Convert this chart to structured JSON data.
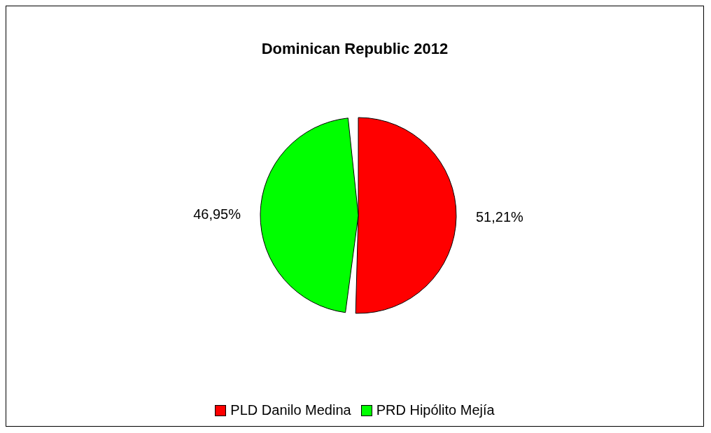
{
  "chart_data": {
    "type": "pie",
    "title": "Dominican Republic 2012",
    "categories": [
      "PLD Danilo Medina",
      "PRD Hipólito Mejía"
    ],
    "values": [
      51.21,
      46.95
    ],
    "value_labels": [
      "51,21%",
      "46,95%"
    ],
    "colors": [
      "#ff0000",
      "#00ff00"
    ],
    "legend": "bottom"
  }
}
